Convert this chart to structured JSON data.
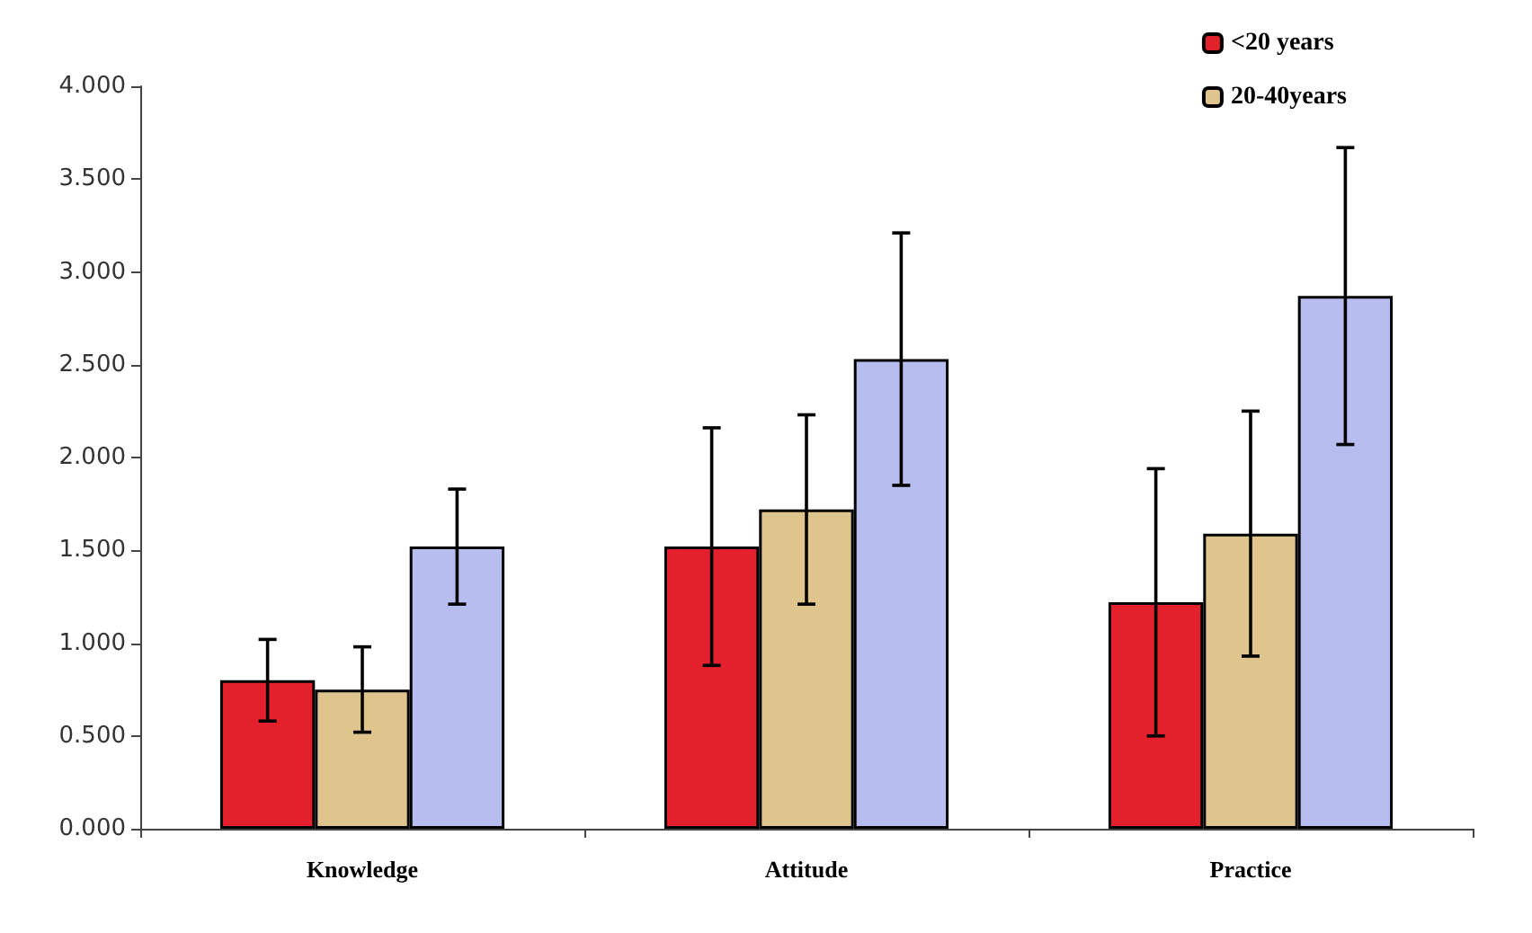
{
  "chart_data": {
    "type": "bar",
    "categories": [
      "Knowledge",
      "Attitude",
      "Practice"
    ],
    "series": [
      {
        "name": "<20 years",
        "color": "#e3202c",
        "values": [
          0.8,
          1.52,
          1.22
        ],
        "errors": [
          0.22,
          0.64,
          0.72
        ]
      },
      {
        "name": "20-40years",
        "color": "#dfc48e",
        "values": [
          0.75,
          1.72,
          1.59
        ],
        "errors": [
          0.23,
          0.51,
          0.66
        ]
      },
      {
        "color": "#b8bdf0",
        "values": [
          1.52,
          2.53,
          2.87
        ],
        "errors": [
          0.31,
          0.68,
          0.8
        ]
      }
    ],
    "ylim": [
      0,
      4
    ],
    "yticks": [
      {
        "value": 0,
        "label": "0.000"
      },
      {
        "value": 0.5,
        "label": "0.500"
      },
      {
        "value": 1,
        "label": "1.000"
      },
      {
        "value": 1.5,
        "label": "1.500"
      },
      {
        "value": 2,
        "label": "2.000"
      },
      {
        "value": 2.5,
        "label": "2.500"
      },
      {
        "value": 3,
        "label": "3.000"
      },
      {
        "value": 3.5,
        "label": "3.500"
      },
      {
        "value": 4,
        "label": "4.000"
      }
    ],
    "grid": false,
    "legend": "top right"
  }
}
